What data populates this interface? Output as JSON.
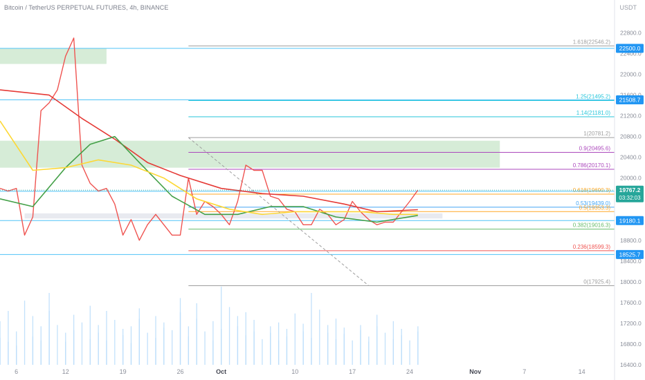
{
  "header": {
    "title": "Bitcoin / TetherUS PERPETUAL FUTURES, 4h, BINANCE",
    "currency": "USDT"
  },
  "colors": {
    "bg": "#ffffff",
    "up": "#26a69a",
    "down": "#ef5350",
    "ma_red": "#e53935",
    "ma_green": "#43a047",
    "ma_yellow": "#fdd835",
    "zone_green": "#c8e6c9",
    "zone_grey": "#e0e3eb",
    "hline": "#4fc3f7",
    "fib_grey": "#9e9e9e",
    "fib_teal": "#26c6da",
    "fib_purple": "#ab47bc",
    "fib_orange": "#ffa726",
    "fib_blue": "#42a5f5",
    "fib_green": "#66bb6a",
    "fib_red": "#ef5350",
    "trend": "#9e9e9e",
    "label_blue": "#2196f3",
    "label_green": "#26a69a",
    "volume": "#bbdefb",
    "grid": "#eef0f3"
  },
  "chart_data": {
    "type": "line",
    "title": "Bitcoin / TetherUS PERPETUAL FUTURES, 4h, BINANCE",
    "xlabel": "",
    "ylabel": "USDT",
    "ylim": [
      16400,
      22900
    ],
    "x_range": [
      "2022-09-04",
      "2022-11-18"
    ],
    "grid": false,
    "x_tick_labels": [
      {
        "date": "2022-09-06",
        "label": "6"
      },
      {
        "date": "2022-09-12",
        "label": "12"
      },
      {
        "date": "2022-09-19",
        "label": "19"
      },
      {
        "date": "2022-09-26",
        "label": "26"
      },
      {
        "date": "2022-10-01",
        "label": "Oct"
      },
      {
        "date": "2022-10-10",
        "label": "10"
      },
      {
        "date": "2022-10-17",
        "label": "17"
      },
      {
        "date": "2022-10-24",
        "label": "24"
      },
      {
        "date": "2022-11-01",
        "label": "Nov"
      },
      {
        "date": "2022-11-07",
        "label": "7"
      },
      {
        "date": "2022-11-14",
        "label": "14"
      }
    ],
    "y_tick_labels": [
      "22800.0",
      "22400.0",
      "22000.0",
      "21600.0",
      "21200.0",
      "20800.0",
      "20400.0",
      "20000.0",
      "19600.0",
      "19200.0",
      "18800.0",
      "18400.0",
      "18000.0",
      "17600.0",
      "17200.0",
      "16800.0",
      "16400.0"
    ],
    "series": [
      {
        "type": "line",
        "color": "#ef5350",
        "points": [
          [
            "2022-09-04",
            19800
          ],
          [
            "2022-09-05",
            19750
          ],
          [
            "2022-09-06",
            19800
          ],
          [
            "2022-09-07",
            18900
          ],
          [
            "2022-09-08",
            19250
          ],
          [
            "2022-09-09",
            21300
          ],
          [
            "2022-09-10",
            21450
          ],
          [
            "2022-09-11",
            21700
          ],
          [
            "2022-09-12",
            22350
          ],
          [
            "2022-09-13",
            22700
          ],
          [
            "2022-09-14",
            20250
          ],
          [
            "2022-09-15",
            19900
          ],
          [
            "2022-09-16",
            19750
          ],
          [
            "2022-09-17",
            19800
          ],
          [
            "2022-09-18",
            19500
          ],
          [
            "2022-09-19",
            18900
          ],
          [
            "2022-09-20",
            19200
          ],
          [
            "2022-09-21",
            18800
          ],
          [
            "2022-09-22",
            19100
          ],
          [
            "2022-09-23",
            19300
          ],
          [
            "2022-09-24",
            19100
          ],
          [
            "2022-09-25",
            18900
          ],
          [
            "2022-09-26",
            18900
          ],
          [
            "2022-09-27",
            20000
          ],
          [
            "2022-09-28",
            19300
          ],
          [
            "2022-09-29",
            19550
          ],
          [
            "2022-09-30",
            19450
          ],
          [
            "2022-10-01",
            19300
          ],
          [
            "2022-10-02",
            19100
          ],
          [
            "2022-10-03",
            19550
          ],
          [
            "2022-10-04",
            20250
          ],
          [
            "2022-10-05",
            20150
          ],
          [
            "2022-10-06",
            20150
          ],
          [
            "2022-10-07",
            19650
          ],
          [
            "2022-10-08",
            19600
          ],
          [
            "2022-10-09",
            19400
          ],
          [
            "2022-10-10",
            19350
          ],
          [
            "2022-10-11",
            19100
          ],
          [
            "2022-10-12",
            19100
          ],
          [
            "2022-10-13",
            19400
          ],
          [
            "2022-10-14",
            19300
          ],
          [
            "2022-10-15",
            19100
          ],
          [
            "2022-10-16",
            19200
          ],
          [
            "2022-10-17",
            19550
          ],
          [
            "2022-10-18",
            19350
          ],
          [
            "2022-10-19",
            19200
          ],
          [
            "2022-10-20",
            19100
          ],
          [
            "2022-10-21",
            19150
          ],
          [
            "2022-10-22",
            19150
          ],
          [
            "2022-10-23",
            19350
          ],
          [
            "2022-10-24",
            19550
          ],
          [
            "2022-10-25",
            19767
          ]
        ]
      },
      {
        "type": "line",
        "name": "",
        "color": "#e53935",
        "points": [
          [
            "2022-09-04",
            21700
          ],
          [
            "2022-09-10",
            21600
          ],
          [
            "2022-09-14",
            21150
          ],
          [
            "2022-09-18",
            20750
          ],
          [
            "2022-09-22",
            20300
          ],
          [
            "2022-09-26",
            20050
          ],
          [
            "2022-10-01",
            19800
          ],
          [
            "2022-10-06",
            19700
          ],
          [
            "2022-10-11",
            19650
          ],
          [
            "2022-10-16",
            19500
          ],
          [
            "2022-10-20",
            19350
          ],
          [
            "2022-10-25",
            19390
          ]
        ]
      },
      {
        "type": "line",
        "name": "",
        "color": "#43a047",
        "points": [
          [
            "2022-09-04",
            19600
          ],
          [
            "2022-09-08",
            19450
          ],
          [
            "2022-09-12",
            20200
          ],
          [
            "2022-09-15",
            20650
          ],
          [
            "2022-09-18",
            20800
          ],
          [
            "2022-09-21",
            20300
          ],
          [
            "2022-09-25",
            19650
          ],
          [
            "2022-09-29",
            19300
          ],
          [
            "2022-10-03",
            19300
          ],
          [
            "2022-10-07",
            19450
          ],
          [
            "2022-10-11",
            19450
          ],
          [
            "2022-10-15",
            19250
          ],
          [
            "2022-10-20",
            19150
          ],
          [
            "2022-10-25",
            19280
          ]
        ]
      },
      {
        "type": "line",
        "name": "",
        "color": "#fdd835",
        "points": [
          [
            "2022-09-04",
            21100
          ],
          [
            "2022-09-08",
            20150
          ],
          [
            "2022-09-12",
            20200
          ],
          [
            "2022-09-16",
            20350
          ],
          [
            "2022-09-20",
            20250
          ],
          [
            "2022-09-24",
            20000
          ],
          [
            "2022-09-28",
            19600
          ],
          [
            "2022-10-02",
            19400
          ],
          [
            "2022-10-06",
            19300
          ],
          [
            "2022-10-10",
            19350
          ],
          [
            "2022-10-14",
            19350
          ],
          [
            "2022-10-18",
            19350
          ],
          [
            "2022-10-22",
            19300
          ],
          [
            "2022-10-25",
            19300
          ]
        ]
      }
    ],
    "volume_values": [
      210,
      340,
      180,
      420,
      260,
      150,
      500,
      380,
      220,
      300,
      190,
      560,
      420,
      310,
      250,
      180,
      390,
      270,
      330,
      460,
      200,
      310,
      250,
      190,
      420,
      350,
      280,
      230,
      170,
      300,
      440,
      360,
      250,
      210,
      380,
      290,
      330,
      270,
      520,
      410,
      300,
      220,
      480,
      360,
      260,
      190,
      340,
      280,
      610,
      450,
      380,
      300,
      230,
      410,
      350,
      260,
      200,
      300,
      250,
      190,
      330,
      280,
      220,
      400,
      320,
      260,
      210,
      560,
      430,
      310,
      250,
      200,
      360,
      290,
      240,
      190,
      310,
      270,
      220,
      180,
      390,
      300,
      250,
      200,
      340,
      280,
      230,
      190,
      300,
      260
    ],
    "zones": [
      {
        "from": "2022-09-04",
        "to": "2022-09-17",
        "low": 22200,
        "high": 22500,
        "color": "#c8e6c9"
      },
      {
        "from": "2022-09-04",
        "to": "2022-11-04",
        "low": 20200,
        "high": 20720,
        "color": "#c8e6c9"
      },
      {
        "from": "2022-09-07",
        "to": "2022-10-28",
        "low": 19220,
        "high": 19320,
        "color": "#e0e3eb"
      }
    ],
    "price_lines": [
      {
        "price": 22500.0,
        "label": "22500.0",
        "color": "#2196f3"
      },
      {
        "price": 21508.7,
        "label": "21508.7",
        "color": "#2196f3"
      },
      {
        "price": 19745.3,
        "label": "19745.3",
        "color": "#2196f3"
      },
      {
        "price": 19180.1,
        "label": "19180.1",
        "color": "#2196f3"
      },
      {
        "price": 18525.7,
        "label": "18525.7",
        "color": "#2196f3"
      }
    ],
    "current_price": {
      "price": 19767.2,
      "label": "19767.2",
      "countdown": "03:32:03",
      "color": "#26a69a"
    },
    "fibonacci": [
      {
        "ratio": 1.618,
        "price": 22546.2,
        "label": "1.618(22546.2)",
        "color": "#9e9e9e"
      },
      {
        "ratio": 1.25,
        "price": 21495.2,
        "label": "1.25(21495.2)",
        "color": "#26c6da"
      },
      {
        "ratio": 1.14,
        "price": 21181.0,
        "label": "1.14(21181.0)",
        "color": "#26c6da"
      },
      {
        "ratio": 1,
        "price": 20781.2,
        "label": "1(20781.2)",
        "color": "#9e9e9e"
      },
      {
        "ratio": 0.9,
        "price": 20495.6,
        "label": "0.9(20495.6)",
        "color": "#ab47bc"
      },
      {
        "ratio": 0.786,
        "price": 20170.1,
        "label": "0.786(20170.1)",
        "color": "#ab47bc"
      },
      {
        "ratio": 0.618,
        "price": 19690.3,
        "label": "0.618(19690.3)",
        "color": "#ffa726"
      },
      {
        "ratio": 0.53,
        "price": 19439.0,
        "label": "0.53(19439.0)",
        "color": "#42a5f5"
      },
      {
        "ratio": 0.5,
        "price": 19353.3,
        "label": "0.5(19353.3)",
        "color": "#ffa726"
      },
      {
        "ratio": 0.382,
        "price": 19016.3,
        "label": "0.382(19016.3)",
        "color": "#66bb6a"
      },
      {
        "ratio": 0.236,
        "price": 18599.3,
        "label": "0.236(18599.3)",
        "color": "#ef5350"
      },
      {
        "ratio": 0,
        "price": 17925.4,
        "label": "0(17925.4)",
        "color": "#9e9e9e"
      }
    ],
    "fib_from": "2022-09-27",
    "trendline": {
      "from": [
        "2022-09-27",
        20781.2
      ],
      "to": [
        "2022-10-19",
        17925.4
      ]
    }
  }
}
